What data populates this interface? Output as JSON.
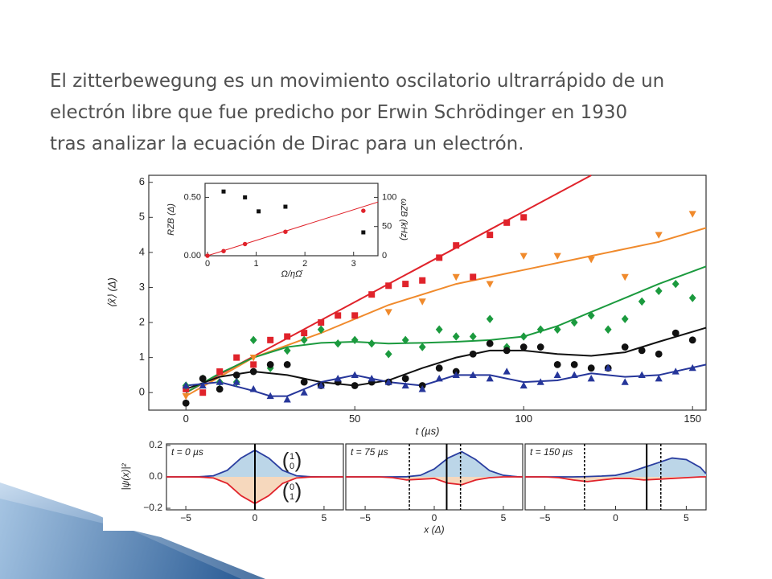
{
  "slide": {
    "lines": [
      "El zitterbewegung es un movimiento oscilatorio ultrarrápido de un",
      "electrón libre que fue predicho por Erwin Schrödinger en 1930",
      "tras analizar la ecuación de Dirac para un electrón."
    ]
  },
  "chart_data": [
    {
      "type": "scatter",
      "xlabel": "t (µs)",
      "ylabel": "⟨x̂⟩ (Δ)",
      "xlim": [
        -11,
        154
      ],
      "ylim": [
        -0.5,
        6.2
      ],
      "xticks": [
        0,
        50,
        100,
        150
      ],
      "yticks": [
        0,
        1,
        2,
        3,
        4,
        5,
        6
      ],
      "series": [
        {
          "color": "#e0232b",
          "marker": "square",
          "x": [
            0,
            5,
            10,
            15,
            20,
            25,
            30,
            35,
            40,
            45,
            50,
            55,
            60,
            65,
            70,
            75,
            80,
            85,
            90,
            95,
            100
          ],
          "values": [
            0.1,
            0,
            0.6,
            1,
            0.8,
            1.5,
            1.6,
            1.7,
            2.0,
            2.2,
            2.2,
            2.8,
            3.05,
            3.1,
            3.2,
            3.85,
            4.2,
            3.3,
            4.5,
            4.85,
            5.0
          ]
        },
        {
          "color": "#f08a2c",
          "marker": "triangle-down",
          "x": [
            0,
            20,
            60,
            70,
            80,
            90,
            100,
            110,
            120,
            130,
            140,
            150
          ],
          "values": [
            -0.1,
            1.0,
            2.3,
            2.6,
            3.3,
            3.1,
            3.9,
            3.9,
            3.8,
            3.3,
            4.5,
            5.1
          ]
        },
        {
          "color": "#1b9a3e",
          "marker": "diamond",
          "x": [
            0,
            5,
            10,
            15,
            20,
            25,
            30,
            35,
            40,
            45,
            50,
            55,
            60,
            65,
            70,
            75,
            80,
            85,
            90,
            95,
            100,
            105,
            110,
            115,
            120,
            125,
            130,
            135,
            140,
            145,
            150
          ],
          "values": [
            0.2,
            0.4,
            0.3,
            0.3,
            1.5,
            0.7,
            1.2,
            1.5,
            1.8,
            1.4,
            1.5,
            1.4,
            1.1,
            1.5,
            1.3,
            1.8,
            1.6,
            1.6,
            2.1,
            1.3,
            1.6,
            1.8,
            1.8,
            2.0,
            2.2,
            1.8,
            2.1,
            2.6,
            2.9,
            3.1,
            2.7
          ]
        },
        {
          "color": "#111111",
          "marker": "circle",
          "x": [
            0,
            5,
            10,
            15,
            20,
            25,
            30,
            35,
            40,
            45,
            50,
            55,
            60,
            65,
            70,
            75,
            80,
            85,
            90,
            95,
            100,
            105,
            110,
            115,
            120,
            125,
            130,
            135,
            140,
            145,
            150
          ],
          "values": [
            -0.3,
            0.4,
            0.1,
            0.5,
            0.6,
            0.8,
            0.8,
            0.3,
            0.2,
            0.3,
            0.2,
            0.3,
            0.3,
            0.4,
            0.2,
            0.7,
            0.6,
            1.1,
            1.4,
            1.2,
            1.3,
            1.3,
            0.8,
            0.8,
            0.7,
            0.7,
            1.3,
            1.2,
            1.1,
            1.7,
            1.5
          ]
        },
        {
          "color": "#26369a",
          "marker": "triangle-up",
          "x": [
            0,
            5,
            10,
            15,
            20,
            25,
            30,
            35,
            40,
            45,
            50,
            55,
            60,
            65,
            70,
            75,
            80,
            85,
            90,
            95,
            100,
            105,
            110,
            115,
            120,
            125,
            130,
            135,
            140,
            145,
            150
          ],
          "values": [
            0.2,
            0.2,
            0.3,
            0.3,
            0.1,
            -0.1,
            -0.2,
            0.0,
            0.2,
            0.4,
            0.5,
            0.4,
            0.3,
            0.2,
            0.1,
            0.4,
            0.5,
            0.5,
            0.4,
            0.6,
            0.2,
            0.3,
            0.5,
            0.5,
            0.4,
            0.7,
            0.3,
            0.5,
            0.4,
            0.6,
            0.7
          ]
        }
      ],
      "fits": [
        {
          "color": "#e0232b",
          "x": [
            0,
            120
          ],
          "values": [
            0,
            6.2
          ]
        },
        {
          "color": "#f08a2c",
          "x": [
            0,
            20,
            40,
            60,
            80,
            100,
            120,
            140,
            154
          ],
          "values": [
            -0.1,
            1.0,
            1.7,
            2.5,
            3.1,
            3.5,
            3.9,
            4.3,
            4.7
          ]
        },
        {
          "color": "#1b9a3e",
          "x": [
            0,
            10,
            20,
            30,
            40,
            50,
            60,
            70,
            80,
            90,
            100,
            110,
            120,
            130,
            140,
            154
          ],
          "values": [
            0,
            0.55,
            1.0,
            1.3,
            1.42,
            1.45,
            1.4,
            1.42,
            1.45,
            1.5,
            1.6,
            1.9,
            2.3,
            2.7,
            3.1,
            3.6
          ]
        },
        {
          "color": "#111111",
          "x": [
            0,
            10,
            20,
            30,
            40,
            50,
            60,
            70,
            80,
            90,
            100,
            110,
            120,
            130,
            140,
            154
          ],
          "values": [
            0.1,
            0.45,
            0.6,
            0.5,
            0.3,
            0.2,
            0.35,
            0.7,
            1.0,
            1.2,
            1.2,
            1.1,
            1.05,
            1.15,
            1.45,
            1.85
          ]
        },
        {
          "color": "#26369a",
          "x": [
            0,
            10,
            20,
            25,
            30,
            40,
            50,
            60,
            70,
            80,
            90,
            100,
            110,
            120,
            130,
            140,
            154
          ],
          "values": [
            0.2,
            0.3,
            0.05,
            -0.1,
            -0.1,
            0.3,
            0.5,
            0.3,
            0.2,
            0.5,
            0.5,
            0.3,
            0.35,
            0.55,
            0.45,
            0.5,
            0.8
          ]
        }
      ]
    },
    {
      "type": "scatter",
      "xlabel": "Ω/ηΩ̄",
      "ylabel": "RZB (Δ)",
      "y2label": "ωZB (kHz)",
      "xlim": [
        -0.05,
        3.5
      ],
      "ylim": [
        0,
        0.62
      ],
      "y2lim": [
        0,
        124
      ],
      "xticks": [
        0,
        1,
        2,
        3
      ],
      "yticks": [
        {
          "value": 0,
          "label": "0.00"
        },
        {
          "value": 0.5,
          "label": "0.50"
        }
      ],
      "y2ticks": [
        0,
        50,
        100
      ],
      "series": [
        {
          "color": "#111111",
          "marker": "square",
          "x": [
            0.33,
            0.77,
            1.05,
            1.6,
            3.2
          ],
          "values": [
            0.55,
            0.5,
            0.38,
            0.42,
            0.2
          ]
        },
        {
          "color": "#e0232b",
          "marker": "circle",
          "axis": "y2",
          "x": [
            0,
            0.33,
            0.77,
            1.6,
            3.2
          ],
          "values": [
            0,
            8,
            20,
            41,
            77
          ]
        }
      ],
      "fits": [
        {
          "color": "#e0232b",
          "axis": "y2",
          "x": [
            0,
            3.5
          ],
          "values": [
            0,
            92
          ]
        }
      ]
    },
    {
      "type": "line",
      "title": "t = 0 µs",
      "ylabel": "|ψ(x)|²",
      "xlim": [
        -6.4,
        6.4
      ],
      "ylim": [
        -0.21,
        0.21
      ],
      "xticks": [
        {
          "value": -5,
          "label": "−5"
        },
        0,
        5
      ],
      "yticks": [
        {
          "value": 0.2,
          "label": "0.2"
        },
        {
          "value": 0,
          "label": "0.0"
        },
        {
          "value": -0.2,
          "label": "−0.2"
        }
      ],
      "top_vector": [
        "1",
        "0"
      ],
      "bottom_vector": [
        "0",
        "1"
      ],
      "x": [
        -7,
        -6,
        -5,
        -4,
        -3,
        -2,
        -1,
        0,
        1,
        2,
        3,
        4,
        5,
        6,
        7
      ],
      "series": [
        {
          "color": "#2a3ea0",
          "fill": "#bcd6e8",
          "values": [
            0,
            0,
            0,
            0.001,
            0.007,
            0.042,
            0.12,
            0.17,
            0.12,
            0.042,
            0.007,
            0.001,
            0,
            0,
            0
          ]
        },
        {
          "color": "#e0232b",
          "fill": "#f6d8bd",
          "values": [
            0,
            0,
            0,
            -0.001,
            -0.007,
            -0.042,
            -0.12,
            -0.17,
            -0.12,
            -0.042,
            -0.007,
            -0.001,
            0,
            0,
            0
          ]
        }
      ],
      "solid_line": 0,
      "dashed_lines": []
    },
    {
      "type": "line",
      "title": "t = 75 µs",
      "xlabel": "x (Δ)",
      "xlim": [
        -6.4,
        6.4
      ],
      "ylim": [
        -0.21,
        0.21
      ],
      "xticks": [
        {
          "value": -5,
          "label": "−5"
        },
        0,
        5
      ],
      "x": [
        -7,
        -6,
        -5,
        -4,
        -3,
        -2,
        -1,
        0,
        1,
        2,
        3,
        4,
        5,
        6,
        7
      ],
      "series": [
        {
          "color": "#2a3ea0",
          "fill": "#bcd6e8",
          "values": [
            0,
            0,
            0,
            0,
            0,
            0.001,
            0.01,
            0.05,
            0.12,
            0.16,
            0.11,
            0.04,
            0.01,
            0.001,
            0
          ]
        },
        {
          "color": "#e0232b",
          "fill": "#f6d8bd",
          "values": [
            0,
            0,
            0,
            0,
            -0.005,
            -0.02,
            -0.015,
            -0.01,
            -0.04,
            -0.05,
            -0.02,
            -0.005,
            0,
            0,
            0
          ]
        }
      ],
      "solid_line": 0.9,
      "dashed_lines": [
        -1.8,
        1.9
      ]
    },
    {
      "type": "line",
      "title": "t = 150 µs",
      "xlim": [
        -6.4,
        6.4
      ],
      "ylim": [
        -0.21,
        0.21
      ],
      "xticks": [
        {
          "value": -5,
          "label": "−5"
        },
        0,
        5
      ],
      "x": [
        -7,
        -6,
        -5,
        -4,
        -3,
        -2,
        -1,
        0,
        1,
        2,
        3,
        4,
        5,
        6,
        7
      ],
      "series": [
        {
          "color": "#2a3ea0",
          "fill": "#bcd6e8",
          "values": [
            0,
            0,
            0,
            0,
            0,
            0.002,
            0.005,
            0.01,
            0.03,
            0.06,
            0.09,
            0.12,
            0.11,
            0.06,
            0.02
          ]
        },
        {
          "color": "#e0232b",
          "fill": "#f6d8bd",
          "values": [
            0,
            0,
            0,
            -0.005,
            -0.02,
            -0.03,
            -0.02,
            -0.01,
            -0.01,
            -0.02,
            -0.015,
            -0.01,
            -0.005,
            0,
            0
          ]
        }
      ],
      "solid_line": 2.2,
      "dashed_lines": [
        -2.2,
        3.2
      ]
    }
  ]
}
